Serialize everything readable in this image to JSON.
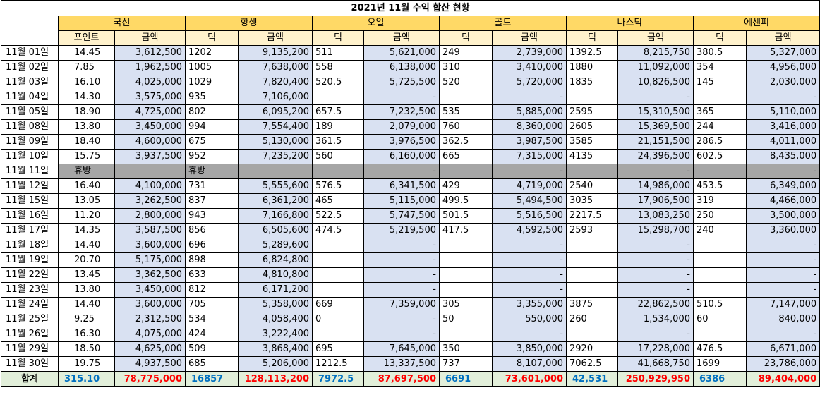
{
  "title": "2021년 11월 수익 합산 현황",
  "instruments": [
    "국선",
    "항생",
    "오일",
    "골드",
    "나스닥",
    "에센피"
  ],
  "subheaders": [
    "포인트",
    "금액",
    "틱",
    "금액",
    "틱",
    "금액",
    "틱",
    "금액",
    "틱",
    "금액",
    "틱",
    "금액"
  ],
  "rows": [
    {
      "date": "11월 01일",
      "cells": [
        "14.45",
        "3,612,500",
        "1202",
        "9,135,200",
        "511",
        "5,621,000",
        "249",
        "2,739,000",
        "1392.5",
        "8,215,750",
        "380.5",
        "5,327,000"
      ]
    },
    {
      "date": "11월 02일",
      "cells": [
        "7.85",
        "1,962,500",
        "1005",
        "7,638,000",
        "558",
        "6,138,000",
        "310",
        "3,410,000",
        "1880",
        "11,092,000",
        "354",
        "4,956,000"
      ]
    },
    {
      "date": "11월 03일",
      "cells": [
        "16.10",
        "4,025,000",
        "1029",
        "7,820,400",
        "520.5",
        "5,725,500",
        "520",
        "5,720,000",
        "1835",
        "10,826,500",
        "145",
        "2,030,000"
      ]
    },
    {
      "date": "11월 04일",
      "cells": [
        "14.30",
        "3,575,000",
        "935",
        "7,106,000",
        "",
        "-",
        "",
        "-",
        "",
        "-",
        "",
        "-"
      ]
    },
    {
      "date": "11월 05일",
      "cells": [
        "18.90",
        "4,725,000",
        "802",
        "6,095,200",
        "657.5",
        "7,232,500",
        "535",
        "5,885,000",
        "2595",
        "15,310,500",
        "365",
        "5,110,000"
      ]
    },
    {
      "date": "11월 08일",
      "cells": [
        "13.80",
        "3,450,000",
        "994",
        "7,554,400",
        "189",
        "2,079,000",
        "760",
        "8,360,000",
        "2605",
        "15,369,500",
        "244",
        "3,416,000"
      ]
    },
    {
      "date": "11월 09일",
      "cells": [
        "18.40",
        "4,600,000",
        "675",
        "5,130,000",
        "361.5",
        "3,976,500",
        "362.5",
        "3,987,500",
        "3585",
        "21,151,500",
        "286.5",
        "4,011,000"
      ]
    },
    {
      "date": "11월 10일",
      "cells": [
        "15.75",
        "3,937,500",
        "952",
        "7,235,200",
        "560",
        "6,160,000",
        "665",
        "7,315,000",
        "4135",
        "24,396,500",
        "602.5",
        "8,435,000"
      ]
    },
    {
      "date": "11월 11일",
      "holiday": true,
      "cells": [
        "휴방",
        "",
        "휴방",
        "",
        "",
        "-",
        "",
        "-",
        "",
        "-",
        "",
        "-"
      ]
    },
    {
      "date": "11월 12일",
      "cells": [
        "16.40",
        "4,100,000",
        "731",
        "5,555,600",
        "576.5",
        "6,341,500",
        "429",
        "4,719,000",
        "2540",
        "14,986,000",
        "453.5",
        "6,349,000"
      ]
    },
    {
      "date": "11월 15일",
      "cells": [
        "13.05",
        "3,262,500",
        "837",
        "6,361,200",
        "465",
        "5,115,000",
        "499.5",
        "5,494,500",
        "3035",
        "17,906,500",
        "319",
        "4,466,000"
      ]
    },
    {
      "date": "11월 16일",
      "cells": [
        "11.20",
        "2,800,000",
        "943",
        "7,166,800",
        "522.5",
        "5,747,500",
        "501.5",
        "5,516,500",
        "2217.5",
        "13,083,250",
        "250",
        "3,500,000"
      ]
    },
    {
      "date": "11월 17일",
      "cells": [
        "14.35",
        "3,587,500",
        "856",
        "6,505,600",
        "474.5",
        "5,219,500",
        "417.5",
        "4,592,500",
        "2593",
        "15,298,700",
        "240",
        "3,360,000"
      ]
    },
    {
      "date": "11월 18일",
      "cells": [
        "14.40",
        "3,600,000",
        "696",
        "5,289,600",
        "",
        "-",
        "",
        "-",
        "",
        "-",
        "",
        "-"
      ]
    },
    {
      "date": "11월 19일",
      "cells": [
        "20.70",
        "5,175,000",
        "898",
        "6,824,800",
        "",
        "-",
        "",
        "-",
        "",
        "-",
        "",
        "-"
      ]
    },
    {
      "date": "11월 22일",
      "cells": [
        "13.45",
        "3,362,500",
        "633",
        "4,810,800",
        "",
        "-",
        "",
        "-",
        "",
        "-",
        "",
        "-"
      ]
    },
    {
      "date": "11월 23일",
      "cells": [
        "13.80",
        "3,450,000",
        "812",
        "6,171,200",
        "",
        "-",
        "",
        "-",
        "",
        "-",
        "",
        "-"
      ]
    },
    {
      "date": "11월 24일",
      "cells": [
        "14.40",
        "3,600,000",
        "705",
        "5,358,000",
        "669",
        "7,359,000",
        "305",
        "3,355,000",
        "3875",
        "22,862,500",
        "510.5",
        "7,147,000"
      ]
    },
    {
      "date": "11월 25일",
      "cells": [
        "9.25",
        "2,312,500",
        "534",
        "4,058,400",
        "0",
        "-",
        "50",
        "550,000",
        "260",
        "1,534,000",
        "60",
        "840,000"
      ]
    },
    {
      "date": "11월 26일",
      "cells": [
        "16.30",
        "4,075,000",
        "424",
        "3,222,400",
        "",
        "-",
        "",
        "-",
        "",
        "-",
        "",
        "-"
      ]
    },
    {
      "date": "11월 29일",
      "cells": [
        "18.50",
        "4,625,000",
        "509",
        "3,868,400",
        "695",
        "7,645,000",
        "350",
        "3,850,000",
        "2920",
        "17,228,000",
        "476.5",
        "6,671,000"
      ]
    },
    {
      "date": "11월 30일",
      "cells": [
        "19.75",
        "4,937,500",
        "685",
        "5,206,000",
        "1212.5",
        "13,337,500",
        "737",
        "8,107,000",
        "7062.5",
        "41,668,750",
        "1699",
        "23,786,000"
      ]
    }
  ],
  "total": {
    "label": "합계",
    "cells": [
      "315.10",
      "78,775,000",
      "16857",
      "128,113,200",
      "7972.5",
      "87,697,500",
      "6691",
      "73,601,000",
      "42,531",
      "250,929,950",
      "6386",
      "89,404,000"
    ]
  },
  "colors": {
    "header_gold": "#ffd966",
    "subheader_light": "#fff2cc",
    "amount_blue": "#d9e1f2",
    "holiday_gray": "#a6a6a6",
    "total_green": "#e2efda",
    "total_count_text": "#0070c0",
    "total_amount_text": "#ff0000"
  }
}
